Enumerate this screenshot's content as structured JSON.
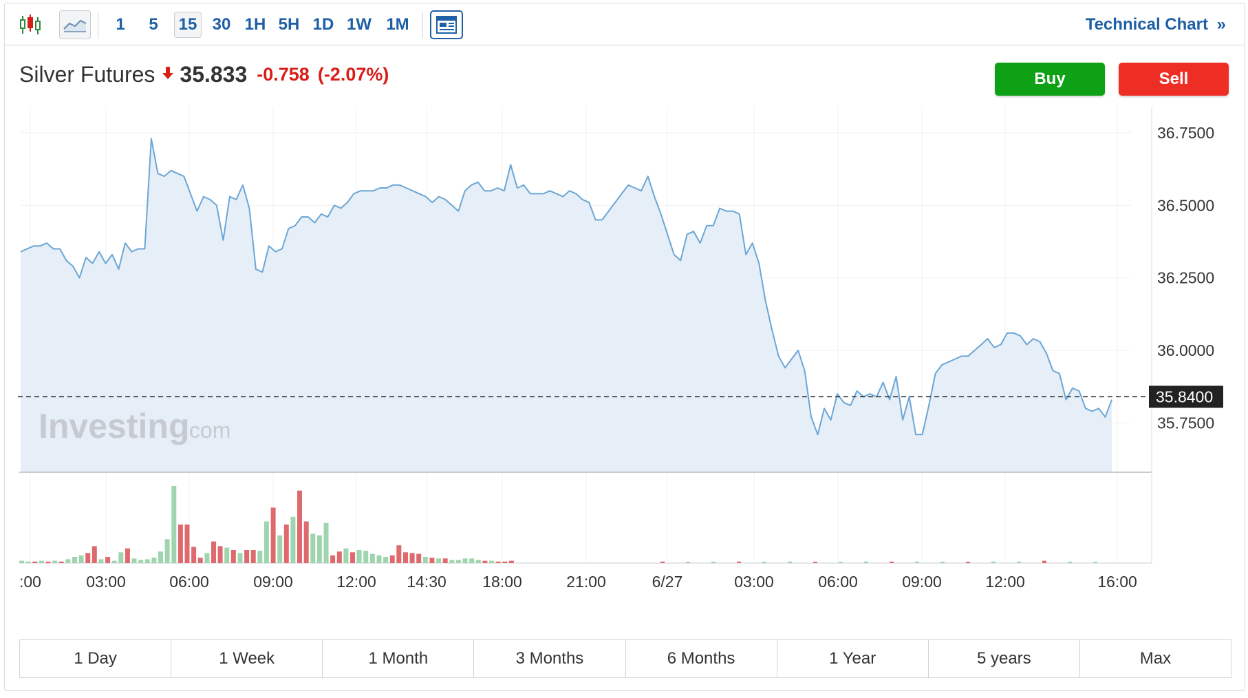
{
  "toolbar": {
    "chart_type_icons": [
      "candlestick-icon",
      "area-chart-icon"
    ],
    "intervals": [
      "1",
      "5",
      "15",
      "30",
      "1H",
      "5H",
      "1D",
      "1W",
      "1M"
    ],
    "active_interval": "15",
    "layout_icon": "layout-icon",
    "technical_link": "Technical Chart",
    "technical_chevron": "»"
  },
  "quote": {
    "name": "Silver Futures",
    "price": "35.833",
    "change": "-0.758",
    "change_pct": "(-2.07%)",
    "direction_icon": "down-arrow-icon"
  },
  "actions": {
    "buy": "Buy",
    "sell": "Sell"
  },
  "colors": {
    "accent": "#1e5fa5",
    "down": "#d91e18",
    "buy": "#0ea015",
    "sell": "#ee2e24",
    "line": "#6aa6d6",
    "area": "#e6eef7",
    "vol_up": "#9fd5ae",
    "vol_down": "#de6a6e"
  },
  "watermark": {
    "brand": "Investing",
    "suffix": ".com"
  },
  "chart_data": {
    "type": "area",
    "x_labels": [
      ":00",
      "03:00",
      "06:00",
      "09:00",
      "12:00",
      "14:30",
      "18:00",
      "21:00",
      "6/27",
      "03:00",
      "06:00",
      "09:00",
      "12:00",
      "16:00"
    ],
    "y_ticks": [
      "36.7500",
      "36.5000",
      "36.2500",
      "36.0000",
      "35.7500"
    ],
    "ylim": [
      35.58,
      36.84
    ],
    "current_value": "35.8400",
    "grid": true,
    "series": [
      {
        "values": [
          36.34,
          36.35,
          36.36,
          36.36,
          36.37,
          36.35,
          36.35,
          36.31,
          36.29,
          36.25,
          36.32,
          36.3,
          36.34,
          36.3,
          36.33,
          36.28,
          36.37,
          36.34,
          36.35,
          36.35,
          36.73,
          36.61,
          36.6,
          36.62,
          36.61,
          36.6,
          36.54,
          36.48,
          36.53,
          36.52,
          36.5,
          36.38,
          36.53,
          36.52,
          36.57,
          36.49,
          36.28,
          36.27,
          36.36,
          36.34,
          36.35,
          36.42,
          36.43,
          36.46,
          36.46,
          36.44,
          36.47,
          36.46,
          36.5,
          36.49,
          36.51,
          36.54,
          36.55,
          36.55,
          36.55,
          36.56,
          36.56,
          36.57,
          36.57,
          36.56,
          36.55,
          36.54,
          36.53,
          36.51,
          36.53,
          36.52,
          36.5,
          36.48,
          36.55,
          36.57,
          36.58,
          36.55,
          36.55,
          36.56,
          36.55,
          36.64,
          36.56,
          36.57,
          36.54,
          36.54,
          36.54,
          36.55,
          36.54,
          36.53,
          36.55,
          36.54,
          36.52,
          36.51,
          36.45,
          36.45,
          36.48,
          36.51,
          36.54,
          36.57,
          36.56,
          36.55,
          36.6,
          36.53,
          36.47,
          36.4,
          36.33,
          36.31,
          36.4,
          36.41,
          36.37,
          36.43,
          36.43,
          36.49,
          36.48,
          36.48,
          36.47,
          36.33,
          36.37,
          36.3,
          36.17,
          36.07,
          35.98,
          35.94,
          35.97,
          36.0,
          35.93,
          35.77,
          35.71,
          35.8,
          35.76,
          35.85,
          35.82,
          35.81,
          35.86,
          35.84,
          35.85,
          35.84,
          35.89,
          35.83,
          35.91,
          35.76,
          35.84,
          35.71,
          35.71,
          35.81,
          35.92,
          35.95,
          35.96,
          35.97,
          35.98,
          35.98,
          36.0,
          36.02,
          36.04,
          36.01,
          36.02,
          36.06,
          36.06,
          36.05,
          36.02,
          36.04,
          36.03,
          35.99,
          35.93,
          35.92,
          35.83,
          35.87,
          35.86,
          35.8,
          35.79,
          35.8,
          35.77,
          35.83
        ]
      }
    ],
    "volume": [
      {
        "v": 0.03,
        "up": true
      },
      {
        "v": 0.02,
        "up": true
      },
      {
        "v": 0.02,
        "up": false
      },
      {
        "v": 0.03,
        "up": true
      },
      {
        "v": 0.02,
        "up": false
      },
      {
        "v": 0.03,
        "up": true
      },
      {
        "v": 0.02,
        "up": false
      },
      {
        "v": 0.05,
        "up": true
      },
      {
        "v": 0.08,
        "up": true
      },
      {
        "v": 0.1,
        "up": true
      },
      {
        "v": 0.13,
        "up": false
      },
      {
        "v": 0.22,
        "up": false
      },
      {
        "v": 0.05,
        "up": true
      },
      {
        "v": 0.08,
        "up": false
      },
      {
        "v": 0.03,
        "up": true
      },
      {
        "v": 0.14,
        "up": true
      },
      {
        "v": 0.19,
        "up": false
      },
      {
        "v": 0.06,
        "up": true
      },
      {
        "v": 0.04,
        "up": true
      },
      {
        "v": 0.05,
        "up": true
      },
      {
        "v": 0.07,
        "up": true
      },
      {
        "v": 0.15,
        "up": true
      },
      {
        "v": 0.31,
        "up": true
      },
      {
        "v": 1.0,
        "up": true
      },
      {
        "v": 0.5,
        "up": false
      },
      {
        "v": 0.5,
        "up": false
      },
      {
        "v": 0.21,
        "up": false
      },
      {
        "v": 0.07,
        "up": false
      },
      {
        "v": 0.13,
        "up": true
      },
      {
        "v": 0.28,
        "up": false
      },
      {
        "v": 0.22,
        "up": false
      },
      {
        "v": 0.2,
        "up": true
      },
      {
        "v": 0.17,
        "up": false
      },
      {
        "v": 0.13,
        "up": true
      },
      {
        "v": 0.17,
        "up": false
      },
      {
        "v": 0.17,
        "up": false
      },
      {
        "v": 0.16,
        "up": true
      },
      {
        "v": 0.54,
        "up": true
      },
      {
        "v": 0.72,
        "up": false
      },
      {
        "v": 0.36,
        "up": true
      },
      {
        "v": 0.5,
        "up": false
      },
      {
        "v": 0.6,
        "up": true
      },
      {
        "v": 0.94,
        "up": false
      },
      {
        "v": 0.54,
        "up": false
      },
      {
        "v": 0.38,
        "up": true
      },
      {
        "v": 0.36,
        "up": true
      },
      {
        "v": 0.52,
        "up": true
      },
      {
        "v": 0.1,
        "up": false
      },
      {
        "v": 0.15,
        "up": false
      },
      {
        "v": 0.19,
        "up": true
      },
      {
        "v": 0.14,
        "up": false
      },
      {
        "v": 0.17,
        "up": true
      },
      {
        "v": 0.16,
        "up": true
      },
      {
        "v": 0.12,
        "up": true
      },
      {
        "v": 0.1,
        "up": true
      },
      {
        "v": 0.08,
        "up": true
      },
      {
        "v": 0.1,
        "up": false
      },
      {
        "v": 0.23,
        "up": false
      },
      {
        "v": 0.14,
        "up": false
      },
      {
        "v": 0.13,
        "up": false
      },
      {
        "v": 0.12,
        "up": false
      },
      {
        "v": 0.08,
        "up": true
      },
      {
        "v": 0.07,
        "up": false
      },
      {
        "v": 0.06,
        "up": true
      },
      {
        "v": 0.06,
        "up": false
      },
      {
        "v": 0.04,
        "up": true
      },
      {
        "v": 0.04,
        "up": true
      },
      {
        "v": 0.06,
        "up": true
      },
      {
        "v": 0.06,
        "up": true
      },
      {
        "v": 0.04,
        "up": true
      },
      {
        "v": 0.03,
        "up": false
      },
      {
        "v": 0.03,
        "up": true
      },
      {
        "v": 0.02,
        "up": false
      },
      {
        "v": 0.02,
        "up": false
      },
      {
        "v": 0.03,
        "up": false
      }
    ],
    "late_volume": [
      0.02,
      0.01,
      0.01,
      0.02,
      0.01,
      0.02,
      0.01,
      0.01,
      0.02,
      0.02,
      0.02,
      0.01,
      0.01,
      0.02,
      0.02,
      0.03,
      0.01,
      0.01
    ]
  },
  "ranges": [
    "1 Day",
    "1 Week",
    "1 Month",
    "3 Months",
    "6 Months",
    "1 Year",
    "5 years",
    "Max"
  ]
}
